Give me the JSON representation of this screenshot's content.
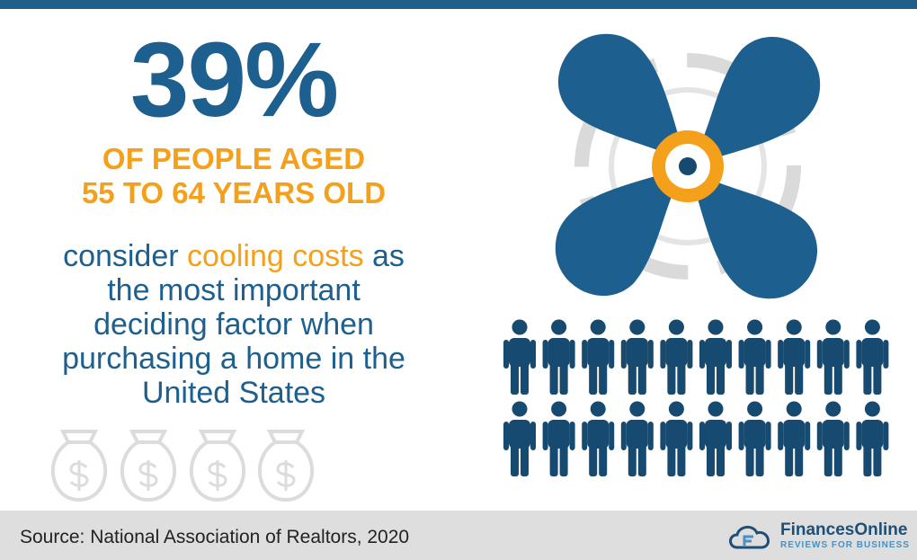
{
  "headline": {
    "value": 39,
    "label": "39%"
  },
  "subhead": [
    "OF PEOPLE AGED",
    "55 TO 64 YEARS OLD"
  ],
  "body": {
    "before": "consider ",
    "highlight": "cooling costs",
    "after": " as",
    "lines": [
      "the most important",
      "deciding factor when",
      "purchasing a home in the",
      "United States"
    ]
  },
  "footer": {
    "source": "Source: National Association of Realtors, 2020",
    "brand": "FinancesOnline",
    "tagline": "REVIEWS FOR BUSINESS"
  }
}
